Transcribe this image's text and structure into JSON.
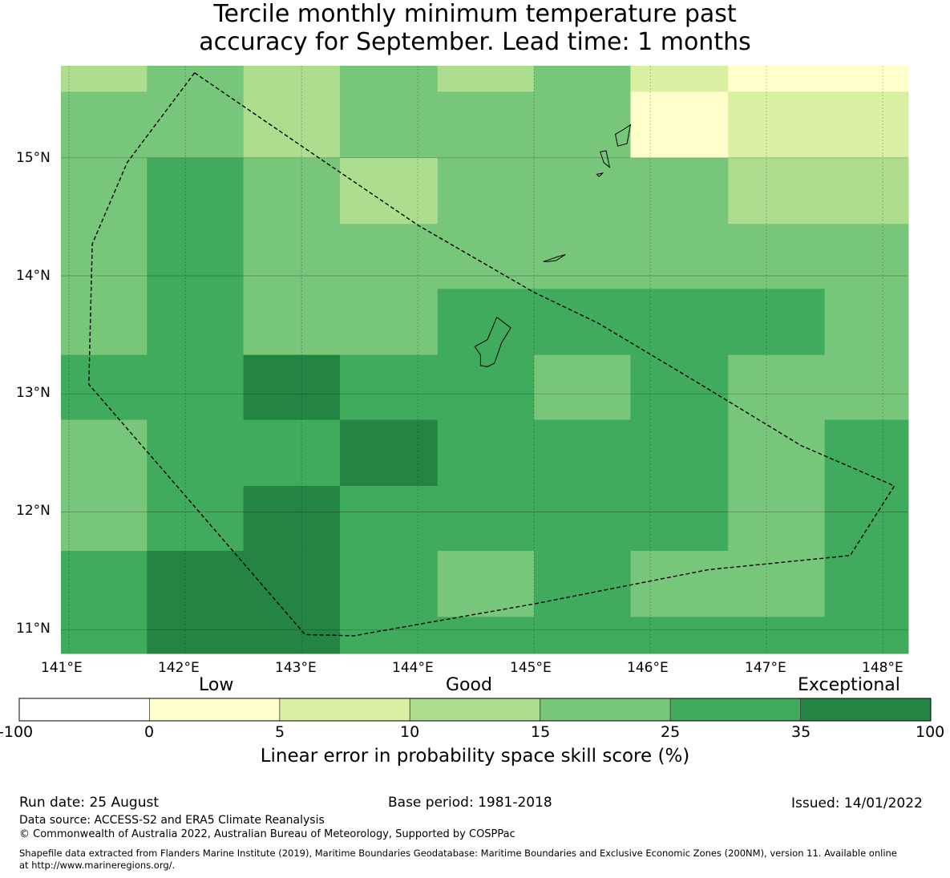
{
  "title_line1": "Tercile monthly minimum temperature past",
  "title_line2": "accuracy for September. Lead time: 1 months",
  "lat_ticks": [
    "15°N",
    "14°N",
    "13°N",
    "12°N",
    "11°N"
  ],
  "lon_ticks": [
    "141°E",
    "142°E",
    "143°E",
    "144°E",
    "145°E",
    "146°E",
    "147°E",
    "148°E"
  ],
  "extent": {
    "lon_min": 140.93,
    "lon_max": 148.22,
    "lat_min": 10.8,
    "lat_max": 15.78
  },
  "grid": {
    "lon_edges": [
      140.93,
      141.67,
      142.5,
      143.33,
      144.17,
      145.0,
      145.83,
      146.67,
      147.5,
      148.22
    ],
    "lat_edges": [
      15.78,
      15.56,
      15.0,
      14.44,
      13.89,
      13.33,
      12.78,
      12.22,
      11.67,
      11.11,
      10.8
    ],
    "values": [
      [
        12,
        20,
        12,
        20,
        12,
        20,
        7,
        3,
        3
      ],
      [
        20,
        20,
        12,
        20,
        20,
        20,
        3,
        7,
        7
      ],
      [
        20,
        30,
        20,
        12,
        20,
        20,
        20,
        12,
        12
      ],
      [
        20,
        30,
        20,
        20,
        20,
        20,
        20,
        20,
        20
      ],
      [
        20,
        30,
        20,
        20,
        30,
        30,
        30,
        30,
        20
      ],
      [
        30,
        30,
        40,
        30,
        30,
        20,
        30,
        20,
        20
      ],
      [
        20,
        30,
        30,
        40,
        30,
        30,
        30,
        20,
        30
      ],
      [
        20,
        30,
        40,
        30,
        30,
        30,
        30,
        20,
        30
      ],
      [
        30,
        40,
        40,
        30,
        20,
        30,
        20,
        20,
        30
      ],
      [
        30,
        40,
        40,
        30,
        30,
        30,
        30,
        30,
        30
      ]
    ]
  },
  "eez_boundary": [
    [
      142.08,
      15.72
    ],
    [
      143.0,
      15.1
    ],
    [
      144.0,
      14.43
    ],
    [
      145.0,
      13.86
    ],
    [
      145.55,
      13.6
    ],
    [
      146.4,
      13.1
    ],
    [
      147.3,
      12.56
    ],
    [
      148.1,
      12.22
    ],
    [
      147.72,
      11.63
    ],
    [
      146.5,
      11.51
    ],
    [
      145.0,
      11.22
    ],
    [
      143.45,
      10.95
    ],
    [
      143.03,
      10.96
    ],
    [
      141.83,
      12.33
    ],
    [
      141.17,
      13.08
    ],
    [
      141.2,
      14.27
    ],
    [
      141.5,
      14.96
    ],
    [
      142.08,
      15.72
    ]
  ],
  "islands": [
    {
      "name": "Guam",
      "points": [
        [
          144.68,
          13.65
        ],
        [
          144.8,
          13.56
        ],
        [
          144.72,
          13.43
        ],
        [
          144.66,
          13.26
        ],
        [
          144.6,
          13.23
        ],
        [
          144.54,
          13.24
        ],
        [
          144.54,
          13.33
        ],
        [
          144.49,
          13.4
        ],
        [
          144.6,
          13.46
        ],
        [
          144.68,
          13.65
        ]
      ]
    },
    {
      "name": "Rota",
      "points": [
        [
          145.08,
          14.12
        ],
        [
          145.2,
          14.16
        ],
        [
          145.27,
          14.18
        ],
        [
          145.19,
          14.13
        ],
        [
          145.12,
          14.12
        ],
        [
          145.08,
          14.12
        ]
      ]
    },
    {
      "name": "Tinian",
      "points": [
        [
          145.57,
          15.05
        ],
        [
          145.6,
          14.96
        ],
        [
          145.65,
          14.92
        ],
        [
          145.62,
          15.06
        ],
        [
          145.57,
          15.05
        ]
      ]
    },
    {
      "name": "Saipan",
      "points": [
        [
          145.7,
          15.2
        ],
        [
          145.77,
          15.24
        ],
        [
          145.83,
          15.28
        ],
        [
          145.8,
          15.12
        ],
        [
          145.72,
          15.1
        ],
        [
          145.7,
          15.2
        ]
      ]
    },
    {
      "name": "Aguijan",
      "points": [
        [
          145.54,
          14.86
        ],
        [
          145.59,
          14.87
        ],
        [
          145.56,
          14.84
        ],
        [
          145.54,
          14.86
        ]
      ]
    }
  ],
  "colorbar": {
    "category_labels": [
      "Low",
      "Good",
      "Exceptional"
    ],
    "tick_labels": [
      "-100",
      "0",
      "5",
      "10",
      "15",
      "25",
      "35",
      "100"
    ],
    "bin_colors": [
      "#ffffff",
      "#ffffcc",
      "#d9f0a3",
      "#addd8e",
      "#78c679",
      "#41ab5d",
      "#238443"
    ],
    "label": "Linear error in probability space skill score (%)"
  },
  "footer": {
    "run_date": "Run date: 25 August",
    "base_period": "Base period: 1981-2018",
    "issued": "Issued: 14/01/2022",
    "data_source": "Data source: ACCESS-S2 and ERA5 Climate Reanalysis",
    "copyright": "© Commonwealth of Australia 2022, Australian Bureau of Meteorology, Supported by COSPPac",
    "shapefile_line1": "Shapefile data extracted from Flanders Marine Institute (2019), Maritime Boundaries Geodatabase: Maritime Boundaries and Exclusive Economic Zones (200NM), version 11. Available online",
    "shapefile_line2": "at http://www.marineregions.org/."
  }
}
